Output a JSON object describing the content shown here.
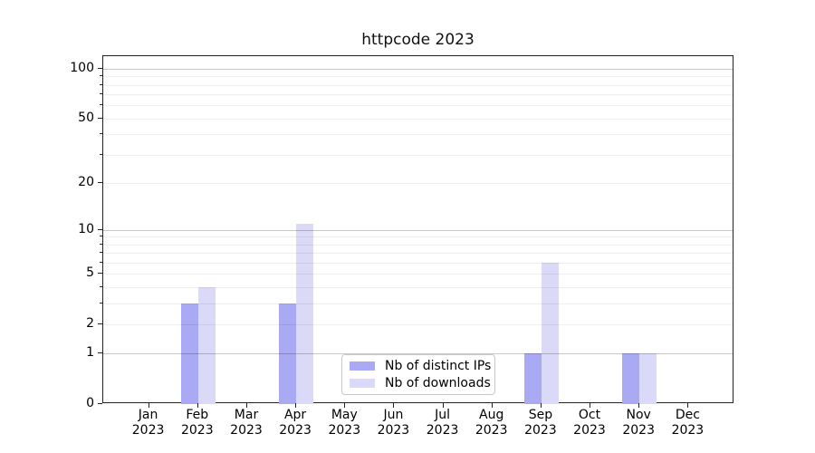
{
  "chart_data": {
    "type": "bar",
    "title": "httpcode 2023",
    "categories": [
      "Jan 2023",
      "Feb 2023",
      "Mar 2023",
      "Apr 2023",
      "May 2023",
      "Jun 2023",
      "Jul 2023",
      "Aug 2023",
      "Sep 2023",
      "Oct 2023",
      "Nov 2023",
      "Dec 2023"
    ],
    "series": [
      {
        "name": "Nb of distinct IPs",
        "color": "#a9a9f4",
        "values": [
          0,
          3,
          0,
          3,
          0,
          0,
          0,
          0,
          1,
          0,
          1,
          0
        ]
      },
      {
        "name": "Nb of downloads",
        "color": "#dadaf8",
        "values": [
          0,
          4,
          0,
          11,
          0,
          0,
          0,
          0,
          6,
          0,
          1,
          0
        ]
      }
    ],
    "yscale": "log(1+x)",
    "ylim": [
      0,
      118
    ],
    "yticks_labeled": [
      0,
      1,
      2,
      5,
      10,
      20,
      50,
      100
    ],
    "yticks_minor": [
      3,
      4,
      6,
      7,
      8,
      9,
      30,
      40,
      60,
      70,
      80,
      90
    ],
    "grid_major_at": [
      1,
      10,
      100
    ],
    "grid": "on",
    "legend_position": "lower center",
    "xlabel": "",
    "ylabel": ""
  }
}
